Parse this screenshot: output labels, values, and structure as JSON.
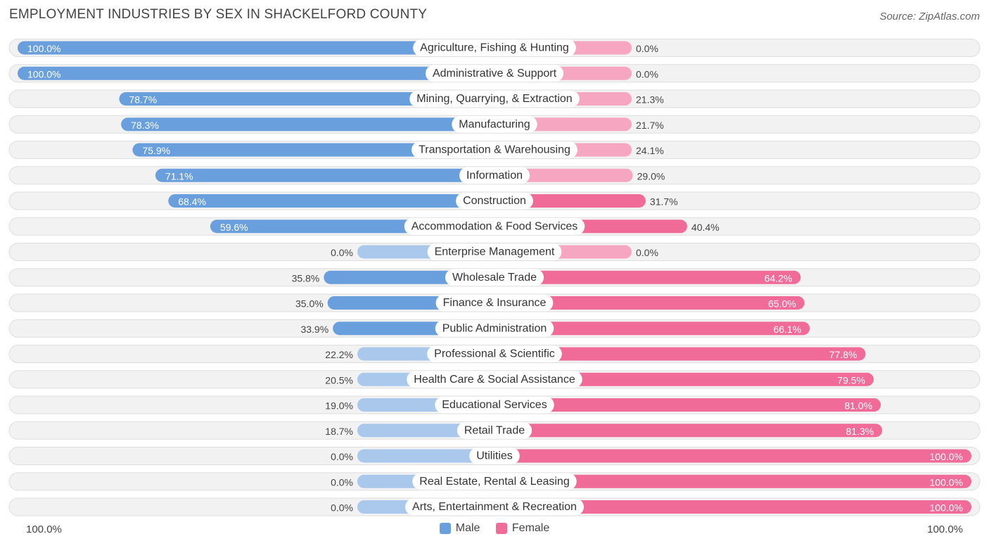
{
  "header": {
    "title": "EMPLOYMENT INDUSTRIES BY SEX IN SHACKELFORD COUNTY",
    "source": "Source: ZipAtlas.com"
  },
  "legend": {
    "male_label": "Male",
    "female_label": "Female"
  },
  "axis": {
    "left_label": "100.0%",
    "right_label": "100.0%"
  },
  "colors": {
    "male": "#6a9fde",
    "male_light": "#a9c8ec",
    "female": "#f06b98",
    "female_light": "#f6a6c0",
    "row_bg": "#f2f2f2",
    "row_border": "#dedede"
  },
  "chart_data": {
    "type": "bar",
    "orientation": "horizontal-diverging",
    "title": "EMPLOYMENT INDUSTRIES BY SEX IN SHACKELFORD COUNTY",
    "categories": [
      "Agriculture, Fishing & Hunting",
      "Administrative & Support",
      "Mining, Quarrying, & Extraction",
      "Manufacturing",
      "Transportation & Warehousing",
      "Information",
      "Construction",
      "Accommodation & Food Services",
      "Enterprise Management",
      "Wholesale Trade",
      "Finance & Insurance",
      "Public Administration",
      "Professional & Scientific",
      "Health Care & Social Assistance",
      "Educational Services",
      "Retail Trade",
      "Utilities",
      "Real Estate, Rental & Leasing",
      "Arts, Entertainment & Recreation"
    ],
    "series": [
      {
        "name": "Male",
        "values": [
          100.0,
          100.0,
          78.7,
          78.3,
          75.9,
          71.1,
          68.4,
          59.6,
          0.0,
          35.8,
          35.0,
          33.9,
          22.2,
          20.5,
          19.0,
          18.7,
          0.0,
          0.0,
          0.0
        ]
      },
      {
        "name": "Female",
        "values": [
          0.0,
          0.0,
          21.3,
          21.7,
          24.1,
          29.0,
          31.7,
          40.4,
          0.0,
          64.2,
          65.0,
          66.1,
          77.8,
          79.5,
          81.0,
          81.3,
          100.0,
          100.0,
          100.0
        ]
      }
    ],
    "value_labels": {
      "male": [
        "100.0%",
        "100.0%",
        "78.7%",
        "78.3%",
        "75.9%",
        "71.1%",
        "68.4%",
        "59.6%",
        "0.0%",
        "35.8%",
        "35.0%",
        "33.9%",
        "22.2%",
        "20.5%",
        "19.0%",
        "18.7%",
        "0.0%",
        "0.0%",
        "0.0%"
      ],
      "female": [
        "0.0%",
        "0.0%",
        "21.3%",
        "21.7%",
        "24.1%",
        "29.0%",
        "31.7%",
        "40.4%",
        "0.0%",
        "64.2%",
        "65.0%",
        "66.1%",
        "77.8%",
        "79.5%",
        "81.0%",
        "81.3%",
        "100.0%",
        "100.0%",
        "100.0%"
      ]
    },
    "xlim": [
      -100,
      100
    ],
    "legend_position": "bottom-center"
  }
}
